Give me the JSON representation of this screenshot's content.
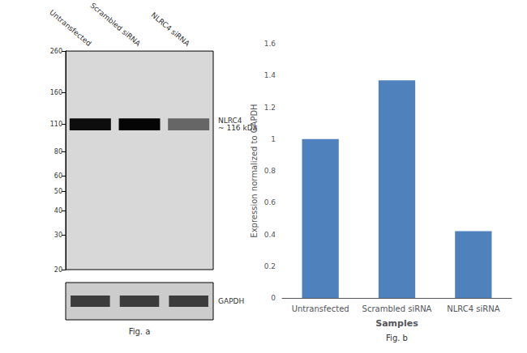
{
  "chart_data": [
    {
      "type": "blot",
      "categories": [
        "Untransfected",
        "Scrambled siRNA",
        "NLRC4 siRNA"
      ],
      "values": [
        110,
        110,
        110
      ],
      "colors": [
        "#0d0d0d",
        "#050505",
        "#666666"
      ],
      "log": "y",
      "ylim": [
        20,
        260
      ],
      "yticks": [
        260,
        160,
        110,
        80,
        60,
        50,
        40,
        30,
        20
      ],
      "annotations": [
        {
          "text": "NLRC4\n~ 116 kDa",
          "y": 110
        }
      ],
      "loading_control": {
        "label": "GAPDH",
        "color": "#222222"
      },
      "caption": "Fig. a"
    },
    {
      "type": "bar",
      "categories": [
        "Untransfected",
        "Scrambled siRNA",
        "NLRC4 siRNA"
      ],
      "values": [
        1.0,
        1.37,
        0.42
      ],
      "color": "#4f81bd",
      "ylabel": "Expression normalized to GAPDH",
      "xlabel": "Samples",
      "ylim": [
        0,
        1.6
      ],
      "yticks": [
        0,
        0.2,
        0.4,
        0.6,
        0.8,
        1.0,
        1.2,
        1.4,
        1.6
      ],
      "grid": false,
      "caption": "Fig. b"
    }
  ]
}
